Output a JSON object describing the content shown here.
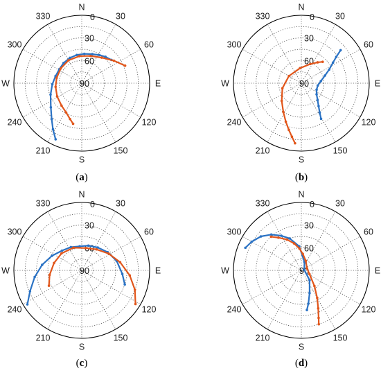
{
  "colors": {
    "series_1": "#2a72c4",
    "series_2": "#e1561b",
    "grid": "#555555",
    "frame": "#000000"
  },
  "chart_data": [
    {
      "panel_label": {
        "open": "(",
        "letter": "a",
        "close": ")"
      },
      "type": "scatter",
      "coordinate_system": "polar",
      "theta_direction": "clockwise from north",
      "r_axis_origin": "90 at center, 0 at rim",
      "r_ticks": [
        "0",
        "30",
        "60",
        "90"
      ],
      "theta_ticks": [
        "30",
        "60",
        "120",
        "150",
        "210",
        "240",
        "300",
        "330"
      ],
      "cardinals": {
        "N": "N",
        "E": "E",
        "S": "S",
        "W": "W"
      },
      "grid": true,
      "series": [
        {
          "theta_deg": [
            205,
            212,
            220,
            232,
            250,
            268,
            285,
            302,
            318,
            335,
            350,
            5,
            20,
            32,
            42,
            52
          ],
          "elevation_deg": [
            8,
            18,
            28,
            38,
            46,
            51,
            54,
            55,
            54,
            53,
            52,
            51,
            49,
            46,
            43,
            40
          ],
          "color": "series_1",
          "marker": "dot-line"
        },
        {
          "theta_deg": [
            192,
            198,
            208,
            222,
            242,
            262,
            282,
            305,
            330,
            355,
            18,
            38,
            55,
            68
          ],
          "elevation_deg": [
            35,
            40,
            46,
            50,
            53,
            55,
            56,
            56,
            55,
            54,
            52,
            47,
            38,
            28
          ],
          "color": "series_2",
          "marker": "dot-line"
        }
      ]
    },
    {
      "panel_label": {
        "open": "(",
        "letter": "b",
        "close": ")"
      },
      "type": "scatter",
      "coordinate_system": "polar",
      "theta_direction": "clockwise from north",
      "r_axis_origin": "90 at center, 0 at rim",
      "r_ticks": [
        "0",
        "30",
        "60",
        "90"
      ],
      "theta_ticks": [
        "30",
        "60",
        "120",
        "150",
        "210",
        "240",
        "300",
        "330"
      ],
      "cardinals": {
        "N": "N",
        "E": "E",
        "S": "S",
        "W": "W"
      },
      "grid": true,
      "series": [
        {
          "theta_deg": [
            151,
            148,
            143,
            136,
            126,
            113,
            98,
            84,
            72,
            64,
            57,
            53,
            50
          ],
          "elevation_deg": [
            36,
            44,
            52,
            59,
            65,
            68,
            68,
            64,
            57,
            49,
            40,
            32,
            22
          ],
          "color": "series_1",
          "marker": "dot-line"
        },
        {
          "theta_deg": [
            186,
            190,
            195,
            202,
            212,
            228,
            255,
            300,
            355,
            25,
            38,
            45
          ],
          "elevation_deg": [
            10,
            18,
            26,
            35,
            45,
            55,
            64,
            71,
            70,
            62,
            55,
            50
          ],
          "color": "series_2",
          "marker": "dot-line"
        }
      ]
    },
    {
      "panel_label": {
        "open": "(",
        "letter": "c",
        "close": ")"
      },
      "type": "scatter",
      "coordinate_system": "polar",
      "theta_direction": "clockwise from north",
      "r_axis_origin": "90 at center, 0 at rim",
      "r_ticks": [
        "0",
        "30",
        "60",
        "90"
      ],
      "theta_ticks": [
        "30",
        "60",
        "120",
        "150",
        "210",
        "240",
        "300",
        "330"
      ],
      "cardinals": {
        "N": "N",
        "E": "E",
        "S": "S",
        "W": "W"
      },
      "grid": true,
      "series": [
        {
          "theta_deg": [
            238,
            248,
            262,
            278,
            296,
            315,
            335,
            355,
            15,
            35,
            55,
            75,
            95,
            108
          ],
          "elevation_deg": [
            5,
            16,
            27,
            37,
            46,
            53,
            56,
            58,
            56,
            53,
            48,
            42,
            36,
            30
          ],
          "color": "series_1",
          "marker": "dot-line"
        },
        {
          "theta_deg": [
            245,
            262,
            285,
            310,
            340,
            10,
            35,
            58,
            78,
            96,
            110,
            122
          ],
          "elevation_deg": [
            42,
            47,
            52,
            55,
            58,
            60,
            56,
            48,
            38,
            26,
            15,
            6
          ],
          "color": "series_2",
          "marker": "dot-line"
        }
      ]
    },
    {
      "panel_label": {
        "open": "(",
        "letter": "d",
        "close": ")"
      },
      "type": "scatter",
      "coordinate_system": "polar",
      "theta_direction": "clockwise from north",
      "r_axis_origin": "90 at center, 0 at rim",
      "r_ticks": [
        "0",
        "30",
        "60",
        "90"
      ],
      "theta_ticks": [
        "30",
        "60",
        "120",
        "150",
        "210",
        "240",
        "300",
        "330"
      ],
      "cardinals": {
        "N": "N",
        "E": "E",
        "S": "S",
        "W": "W"
      },
      "grid": true,
      "series": [
        {
          "theta_deg": [
            292,
            300,
            310,
            320,
            330,
            340,
            355,
            20,
            80,
            140,
            160,
            168,
            172
          ],
          "elevation_deg": [
            10,
            14,
            20,
            28,
            37,
            45,
            58,
            78,
            86,
            73,
            58,
            45,
            37
          ],
          "color": "series_1",
          "marker": "dot-line"
        },
        {
          "theta_deg": [
            318,
            325,
            335,
            345,
            355,
            5,
            25,
            70,
            115,
            140,
            150,
            156,
            160,
            162
          ],
          "elevation_deg": [
            30,
            37,
            45,
            53,
            61,
            68,
            76,
            82,
            78,
            63,
            48,
            35,
            23,
            15
          ],
          "color": "series_2",
          "marker": "dot-line"
        }
      ]
    }
  ]
}
